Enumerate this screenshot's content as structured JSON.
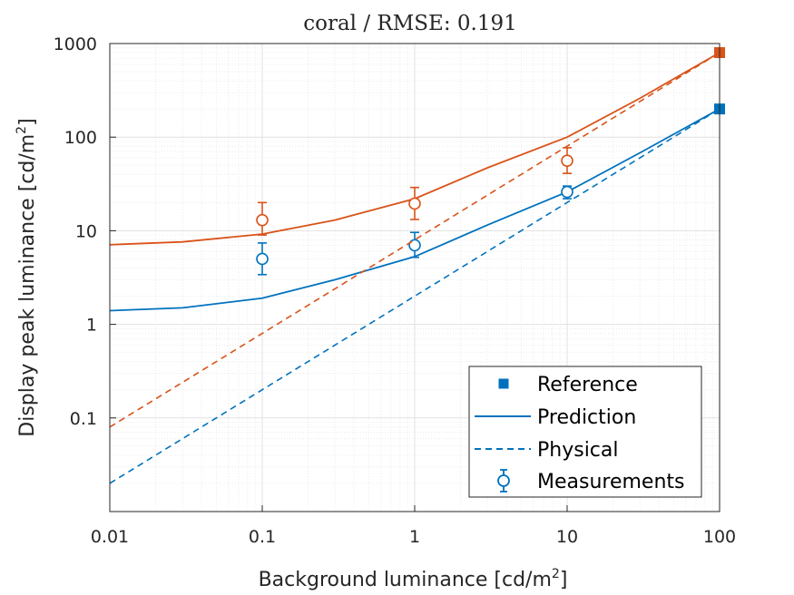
{
  "chart_data": {
    "type": "line",
    "title": "coral / RMSE: 0.191",
    "xlabel": "Background luminance [cd/m",
    "xlabel_sup": "2",
    "xlabel_end": "]",
    "ylabel": "Display peak luminance [cd/m",
    "ylabel_sup": "2",
    "ylabel_end": "]",
    "xscale": "log",
    "yscale": "log",
    "xlim": [
      0.01,
      100
    ],
    "ylim": [
      0.01,
      1000
    ],
    "xticks": [
      0.01,
      0.1,
      1,
      10,
      100
    ],
    "xtick_labels": [
      "0.01",
      "0.1",
      "1",
      "10",
      "100"
    ],
    "yticks": [
      0.1,
      1,
      10,
      100,
      1000
    ],
    "ytick_labels": [
      "0.1",
      "1",
      "10",
      "100",
      "1000"
    ],
    "grid": true,
    "minor_grid": true,
    "legend_position": "bottom-right",
    "legend": [
      {
        "label": "Reference",
        "style": "square"
      },
      {
        "label": "Prediction",
        "style": "solid"
      },
      {
        "label": "Physical",
        "style": "dashed"
      },
      {
        "label": "Measurements",
        "style": "errorbar"
      }
    ],
    "series": [
      {
        "color": "#0072BD",
        "reference": {
          "x": 100,
          "y": 200
        },
        "prediction": {
          "x": [
            0.01,
            0.03,
            0.1,
            0.3,
            1,
            3,
            10,
            30,
            100
          ],
          "y": [
            1.4,
            1.5,
            1.9,
            3.0,
            5.3,
            11.5,
            26,
            68,
            200
          ]
        },
        "physical": {
          "x": [
            0.01,
            100
          ],
          "y": [
            0.02,
            200
          ]
        },
        "measurements": {
          "x": [
            0.1,
            1,
            10
          ],
          "y": [
            5,
            7,
            26
          ],
          "err_low": [
            3.4,
            5.2,
            22
          ],
          "err_high": [
            7.4,
            9.6,
            30
          ]
        }
      },
      {
        "color": "#D95319",
        "reference": {
          "x": 100,
          "y": 800
        },
        "prediction": {
          "x": [
            0.01,
            0.03,
            0.1,
            0.3,
            1,
            3,
            10,
            30,
            100
          ],
          "y": [
            7.1,
            7.6,
            9.2,
            13,
            22,
            47,
            100,
            260,
            800
          ]
        },
        "physical": {
          "x": [
            0.01,
            100
          ],
          "y": [
            0.08,
            800
          ]
        },
        "measurements": {
          "x": [
            0.1,
            1,
            10
          ],
          "y": [
            13,
            19.5,
            56
          ],
          "err_low": [
            9,
            13.2,
            41
          ],
          "err_high": [
            20,
            29,
            77
          ]
        }
      }
    ]
  }
}
